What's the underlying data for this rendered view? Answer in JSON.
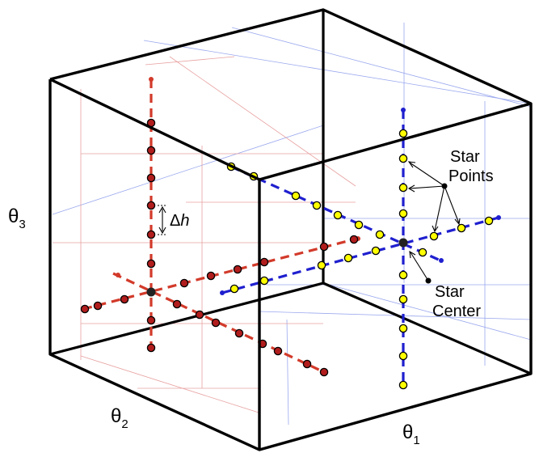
{
  "axes": {
    "theta1": {
      "base": "θ",
      "sub": "1"
    },
    "theta2": {
      "base": "θ",
      "sub": "2"
    },
    "theta3": {
      "base": "θ",
      "sub": "3"
    }
  },
  "annotations": {
    "delta_h": {
      "prefix": "Δ",
      "var": "h"
    },
    "star_points": [
      "Star",
      "Points"
    ],
    "star_center": [
      "Star",
      "Center"
    ]
  },
  "colors": {
    "box_edge": "#000000",
    "grid_red": "#e8a0a0",
    "grid_blue": "#9aa8ee",
    "left_star_line": "#d23a2a",
    "left_star_point": "#b11d1d",
    "right_star_line": "#1f1fcf",
    "right_star_point": "#ffff00",
    "center": "#222222"
  }
}
